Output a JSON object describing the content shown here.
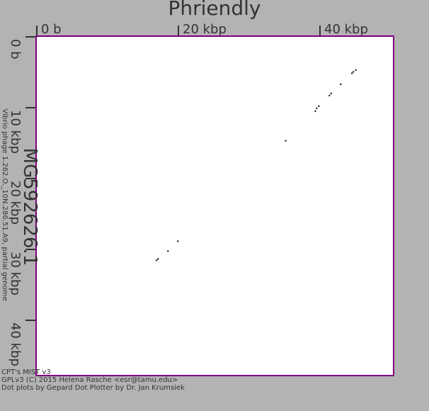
{
  "chart_data": {
    "type": "scatter",
    "title": "Phriendly",
    "xlabel": "",
    "ylabel": "MG592626.1",
    "ylabel_sub": "Vibrio phage 1.262.O._10N.286.51.A9, partial genome",
    "x_ticks": [
      "0 b",
      "20 kbp",
      "40 kbp"
    ],
    "y_ticks": [
      "0 b",
      "10 kbp",
      "20 kbp",
      "30 kbp",
      "40 kbp"
    ],
    "xlim": [
      0,
      50500
    ],
    "ylim": [
      0,
      47800
    ],
    "grid": false,
    "x_units": "bp",
    "y_units": "bp",
    "points": [
      [
        45250,
        4700
      ],
      [
        44900,
        4950
      ],
      [
        44700,
        5150
      ],
      [
        43100,
        6700
      ],
      [
        41750,
        8000
      ],
      [
        41500,
        8300
      ],
      [
        40000,
        9800
      ],
      [
        39700,
        10100
      ],
      [
        39500,
        10500
      ],
      [
        35300,
        14700
      ],
      [
        20000,
        28900
      ],
      [
        18600,
        30300
      ],
      [
        17200,
        31400
      ],
      [
        17000,
        31600
      ]
    ],
    "colors": {
      "background": "#b3b3b3",
      "plot": "#ffffff",
      "border": "#800080",
      "dot": "#000000",
      "text": "#333333"
    }
  },
  "footer": [
    "CPT's MIST v3",
    "GPLv3 (C) 2015 Helena Rasche <esr@tamu.edu>",
    "Dot plots by Gepard Dot Plotter by Dr. Jan Krumsiek"
  ]
}
